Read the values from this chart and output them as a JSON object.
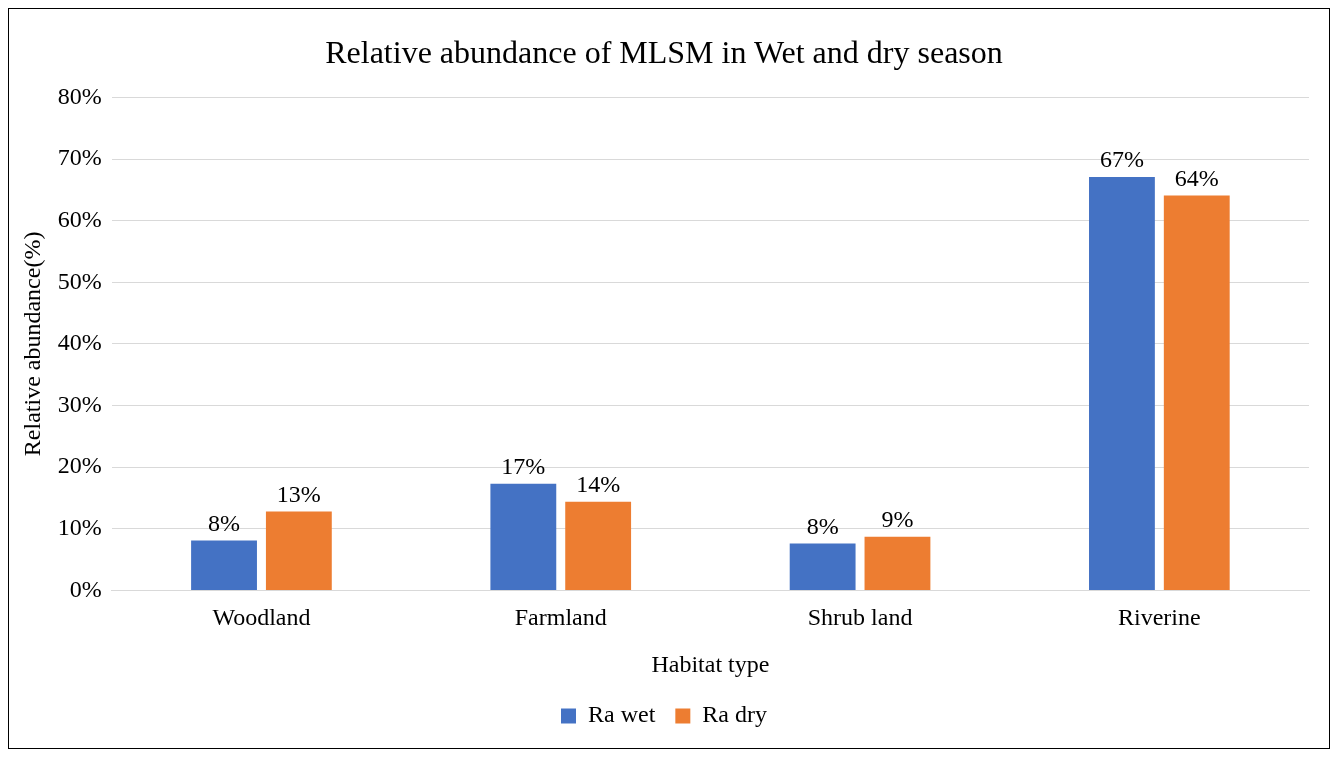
{
  "chart_data": {
    "type": "bar",
    "title": "Relative abundance of MLSM in Wet and dry season",
    "xlabel": "Habitat type",
    "ylabel": "Relative abundance(%)",
    "categories": [
      "Woodland",
      "Farmland",
      "Shrub land",
      "Riverine"
    ],
    "series": [
      {
        "name": "Ra wet",
        "color": "#4472c4",
        "values": [
          8.1,
          17.3,
          7.6,
          67.1
        ],
        "value_labels": [
          "8%",
          "17%",
          "8%",
          "67%"
        ]
      },
      {
        "name": "Ra dry",
        "color": "#ed7d31",
        "values": [
          12.8,
          14.4,
          8.7,
          64.1
        ],
        "value_labels": [
          "13%",
          "14%",
          "9%",
          "64%"
        ]
      }
    ],
    "ylim": [
      0,
      80
    ],
    "yticks": [
      {
        "value": 0,
        "label": "0%"
      },
      {
        "value": 10,
        "label": "10%"
      },
      {
        "value": 20,
        "label": "20%"
      },
      {
        "value": 30,
        "label": "30%"
      },
      {
        "value": 40,
        "label": "40%"
      },
      {
        "value": 50,
        "label": "50%"
      },
      {
        "value": 60,
        "label": "60%"
      },
      {
        "value": 70,
        "label": "70%"
      },
      {
        "value": 80,
        "label": "80%"
      }
    ],
    "grid": "y",
    "legend": "bottom"
  }
}
